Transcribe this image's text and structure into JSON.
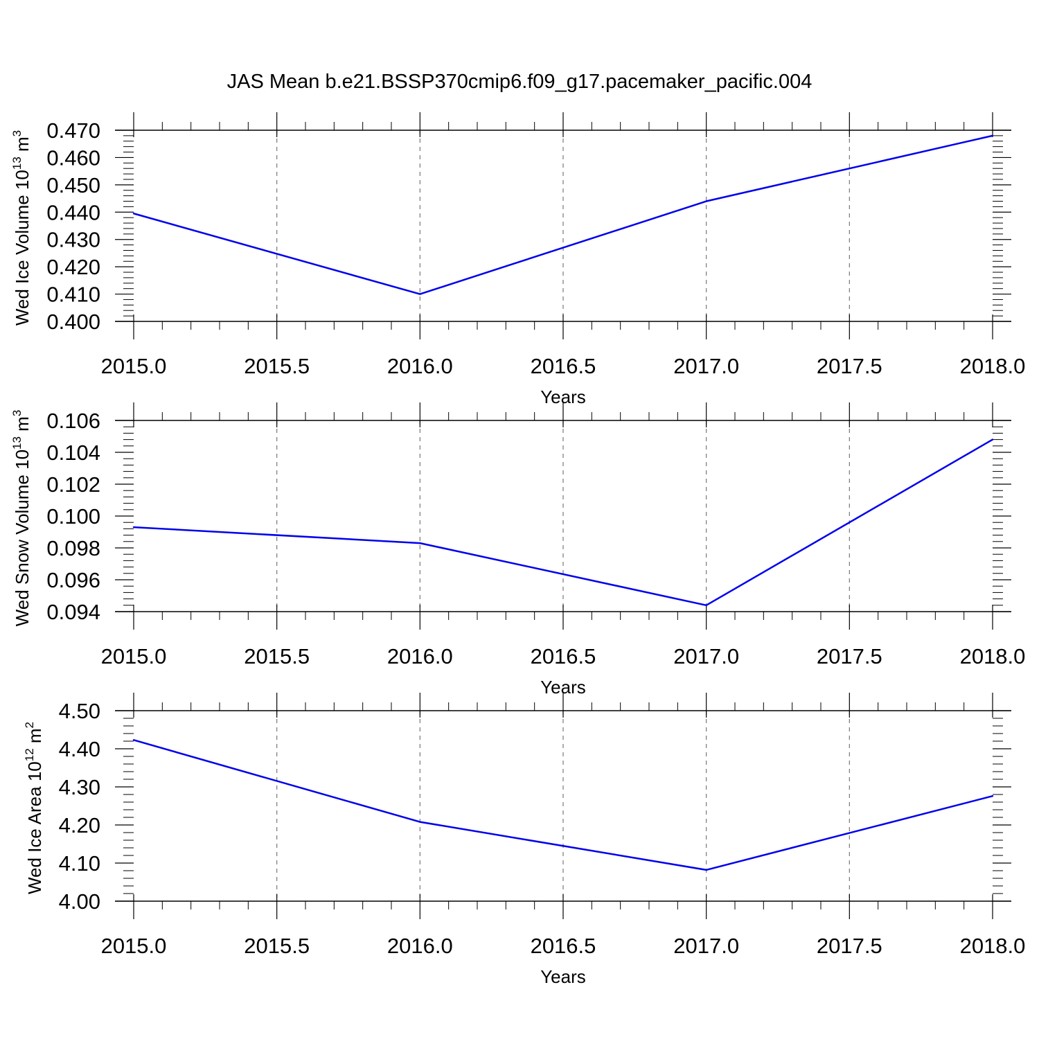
{
  "title": "JAS Mean b.e21.BSSP370cmip6.f09_g17.pacemaker_pacific.004",
  "colors": {
    "line": "#0000ee",
    "axis": "#000000",
    "grid": "#777777"
  },
  "chart_data": [
    {
      "type": "line",
      "x": [
        2015,
        2016,
        2017,
        2018
      ],
      "series": [
        {
          "values": [
            0.4395,
            0.41,
            0.444,
            0.468
          ]
        }
      ],
      "xlabel": "Years",
      "ylabel": {
        "text": "Wed Ice Volume 10",
        "exponent": "13",
        "unit": " m",
        "unit_exponent": "3"
      },
      "xlim": [
        2015,
        2018
      ],
      "ylim": [
        0.4,
        0.47
      ],
      "xticks": [
        2015.0,
        2015.5,
        2016.0,
        2016.5,
        2017.0,
        2017.5,
        2018.0
      ],
      "xtick_labels": [
        "2015.0",
        "2015.5",
        "2016.0",
        "2016.5",
        "2017.0",
        "2017.5",
        "2018.0"
      ],
      "yticks": [
        0.4,
        0.41,
        0.42,
        0.43,
        0.44,
        0.45,
        0.46,
        0.47
      ],
      "ytick_labels": [
        "0.400",
        "0.410",
        "0.420",
        "0.430",
        "0.440",
        "0.450",
        "0.460",
        "0.470"
      ],
      "grid": "vertical-dashed"
    },
    {
      "type": "line",
      "x": [
        2015,
        2016,
        2017,
        2018
      ],
      "series": [
        {
          "values": [
            0.0993,
            0.0983,
            0.0944,
            0.1048
          ]
        }
      ],
      "xlabel": "Years",
      "ylabel": {
        "text": "Wed Snow Volume 10",
        "exponent": "13",
        "unit": " m",
        "unit_exponent": "3"
      },
      "xlim": [
        2015,
        2018
      ],
      "ylim": [
        0.094,
        0.106
      ],
      "xticks": [
        2015.0,
        2015.5,
        2016.0,
        2016.5,
        2017.0,
        2017.5,
        2018.0
      ],
      "xtick_labels": [
        "2015.0",
        "2015.5",
        "2016.0",
        "2016.5",
        "2017.0",
        "2017.5",
        "2018.0"
      ],
      "yticks": [
        0.094,
        0.096,
        0.098,
        0.1,
        0.102,
        0.104,
        0.106
      ],
      "ytick_labels": [
        "0.094",
        "0.096",
        "0.098",
        "0.100",
        "0.102",
        "0.104",
        "0.106"
      ],
      "grid": "vertical-dashed"
    },
    {
      "type": "line",
      "x": [
        2015,
        2016,
        2017,
        2018
      ],
      "series": [
        {
          "values": [
            4.423,
            4.208,
            4.082,
            4.276
          ]
        }
      ],
      "xlabel": "Years",
      "ylabel": {
        "text": "Wed Ice Area 10",
        "exponent": "12",
        "unit": " m",
        "unit_exponent": "2"
      },
      "xlim": [
        2015,
        2018
      ],
      "ylim": [
        4.0,
        4.5
      ],
      "xticks": [
        2015.0,
        2015.5,
        2016.0,
        2016.5,
        2017.0,
        2017.5,
        2018.0
      ],
      "xtick_labels": [
        "2015.0",
        "2015.5",
        "2016.0",
        "2016.5",
        "2017.0",
        "2017.5",
        "2018.0"
      ],
      "yticks": [
        4.0,
        4.1,
        4.2,
        4.3,
        4.4,
        4.5
      ],
      "ytick_labels": [
        "4.00",
        "4.10",
        "4.20",
        "4.30",
        "4.40",
        "4.50"
      ],
      "grid": "vertical-dashed"
    }
  ]
}
